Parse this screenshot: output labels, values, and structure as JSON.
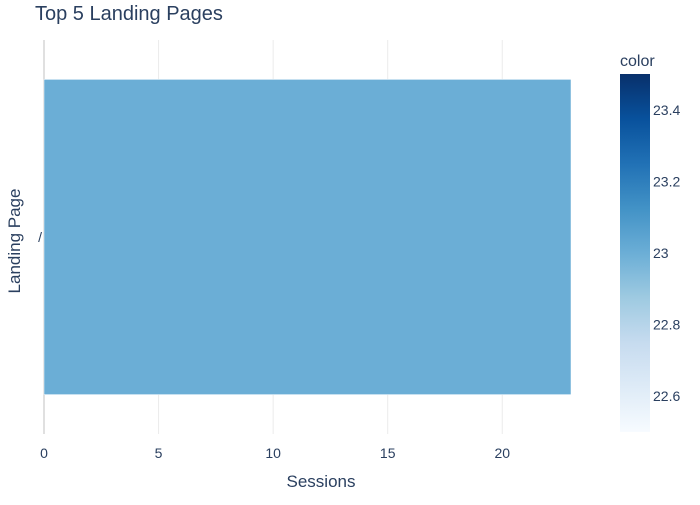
{
  "chart_data": {
    "type": "bar",
    "orientation": "horizontal",
    "title": "Top 5 Landing Pages",
    "xlabel": "Sessions",
    "ylabel": "Landing Page",
    "categories": [
      "/"
    ],
    "values": [
      23
    ],
    "xlim": [
      0,
      23
    ],
    "x_ticks": [
      "0",
      "5",
      "10",
      "15",
      "20"
    ],
    "grid": true,
    "bar_color": "#6baed6",
    "colorbar": {
      "title": "color",
      "range": [
        22.5,
        23.5
      ],
      "ticks": [
        "22.6",
        "22.8",
        "23",
        "23.2",
        "23.4"
      ],
      "colorscale": "Blues",
      "colors": [
        "#f7fbff",
        "#deebf7",
        "#c6dbef",
        "#9ecae1",
        "#6baed6",
        "#4292c6",
        "#2171b5",
        "#08519c",
        "#08306b"
      ]
    }
  }
}
